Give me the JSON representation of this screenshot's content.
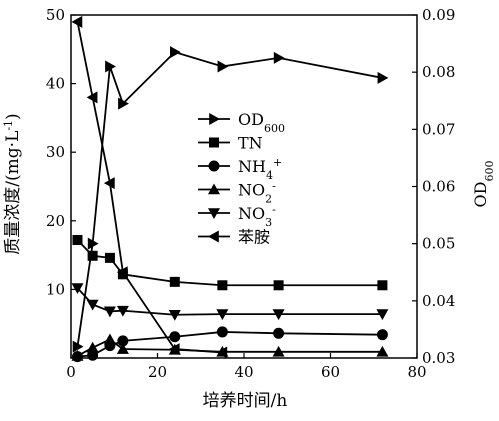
{
  "chart_data": {
    "type": "line",
    "title": "",
    "xlabel": "培养时间/h",
    "ylabel": "质量浓度/(mg·L",
    "ylabel_sup": "-1",
    "ylabel_close": ")",
    "y2label": "OD",
    "y2label_sub": "600",
    "xlim": [
      0,
      80
    ],
    "ylim": [
      0,
      50
    ],
    "y2lim": [
      0.03,
      0.09
    ],
    "xticks": [
      0,
      20,
      40,
      60,
      80
    ],
    "yticks": [
      10,
      20,
      30,
      40,
      50
    ],
    "y2ticks": [
      0.03,
      0.04,
      0.05,
      0.06,
      0.07,
      0.08,
      0.09
    ],
    "grid": false,
    "legend_position": "center-left",
    "series": [
      {
        "name": "OD",
        "sub": "600",
        "sup": "",
        "marker": "tri-right",
        "axis": "right",
        "x": [
          1.5,
          5,
          9,
          12,
          24,
          35,
          48,
          72
        ],
        "y": [
          0.032,
          0.05,
          0.081,
          0.0745,
          0.0835,
          0.081,
          0.0825,
          0.079
        ]
      },
      {
        "name": "TN",
        "sub": "",
        "sup": "",
        "marker": "square",
        "axis": "left",
        "x": [
          1.5,
          5,
          9,
          12,
          24,
          35,
          48,
          72
        ],
        "y": [
          17.2,
          14.9,
          14.6,
          12.2,
          11.1,
          10.6,
          10.6,
          10.6
        ]
      },
      {
        "name": "NH",
        "sub": "4",
        "sup": "+",
        "marker": "circle",
        "axis": "left",
        "x": [
          1.5,
          5,
          9,
          12,
          24,
          35,
          48,
          72
        ],
        "y": [
          0.2,
          0.4,
          1.8,
          2.5,
          3.1,
          3.8,
          3.6,
          3.4
        ]
      },
      {
        "name": "NO",
        "sub": "2",
        "sup": "-",
        "marker": "tri-up",
        "axis": "left",
        "x": [
          1.5,
          5,
          9,
          12,
          24,
          35,
          48,
          72
        ],
        "y": [
          0.3,
          1.5,
          2.7,
          1.3,
          1.2,
          0.9,
          0.9,
          0.9
        ]
      },
      {
        "name": "NO",
        "sub": "3",
        "sup": "-",
        "marker": "tri-down",
        "axis": "left",
        "x": [
          1.5,
          5,
          9,
          12,
          24,
          35,
          48,
          72
        ],
        "y": [
          10.2,
          7.8,
          6.8,
          6.9,
          6.3,
          6.4,
          6.4,
          6.4
        ]
      },
      {
        "name": "苯胺",
        "sub": "",
        "sup": "",
        "marker": "tri-left",
        "axis": "left",
        "x": [
          1.5,
          5,
          9,
          12,
          24,
          35
        ],
        "y": [
          49.0,
          38.0,
          25.5,
          12.5,
          1.3,
          0.8
        ]
      }
    ]
  }
}
